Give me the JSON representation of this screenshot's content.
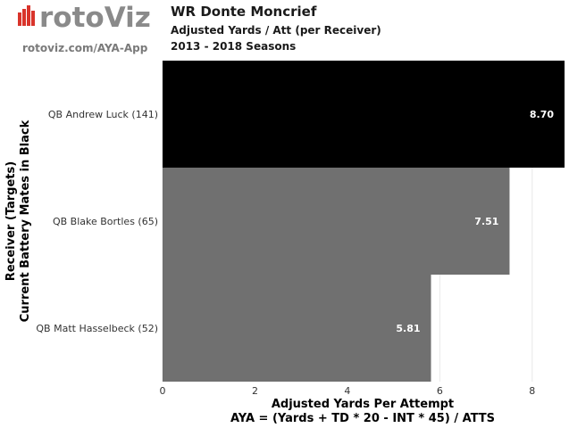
{
  "brand": {
    "logo_text": "rotoViz",
    "url_text": "rotoviz.com/AYA-App",
    "logo_color": "#8a8a8a",
    "logo_accent_color": "#d9342b"
  },
  "header": {
    "title": "WR Donte Moncrief",
    "subtitle": "Adjusted Yards / Att (per Receiver)",
    "seasons": "2013 - 2018 Seasons"
  },
  "chart_data": {
    "type": "bar",
    "orientation": "horizontal",
    "categories": [
      "QB Andrew Luck (141)",
      "QB Blake Bortles (65)",
      "QB Matt Hasselbeck (52)"
    ],
    "values": [
      8.7,
      7.51,
      5.81
    ],
    "value_labels": [
      "8.70",
      "7.51",
      "5.81"
    ],
    "bar_colors": [
      "#000000",
      "#707070",
      "#707070"
    ],
    "x_ticks": [
      0,
      2,
      4,
      6,
      8
    ],
    "x_tick_labels": [
      "0",
      "2",
      "4",
      "6",
      "8"
    ],
    "xlim": [
      0,
      8.7
    ],
    "xlabel": "Adjusted Yards Per Attempt",
    "xlabel_formula": "AYA = (Yards + TD * 20 - INT * 45) / ATTS",
    "ylabel": "Receiver (Targets)",
    "ylabel_sub": "Current Battery Mates in Black",
    "grid": true
  }
}
